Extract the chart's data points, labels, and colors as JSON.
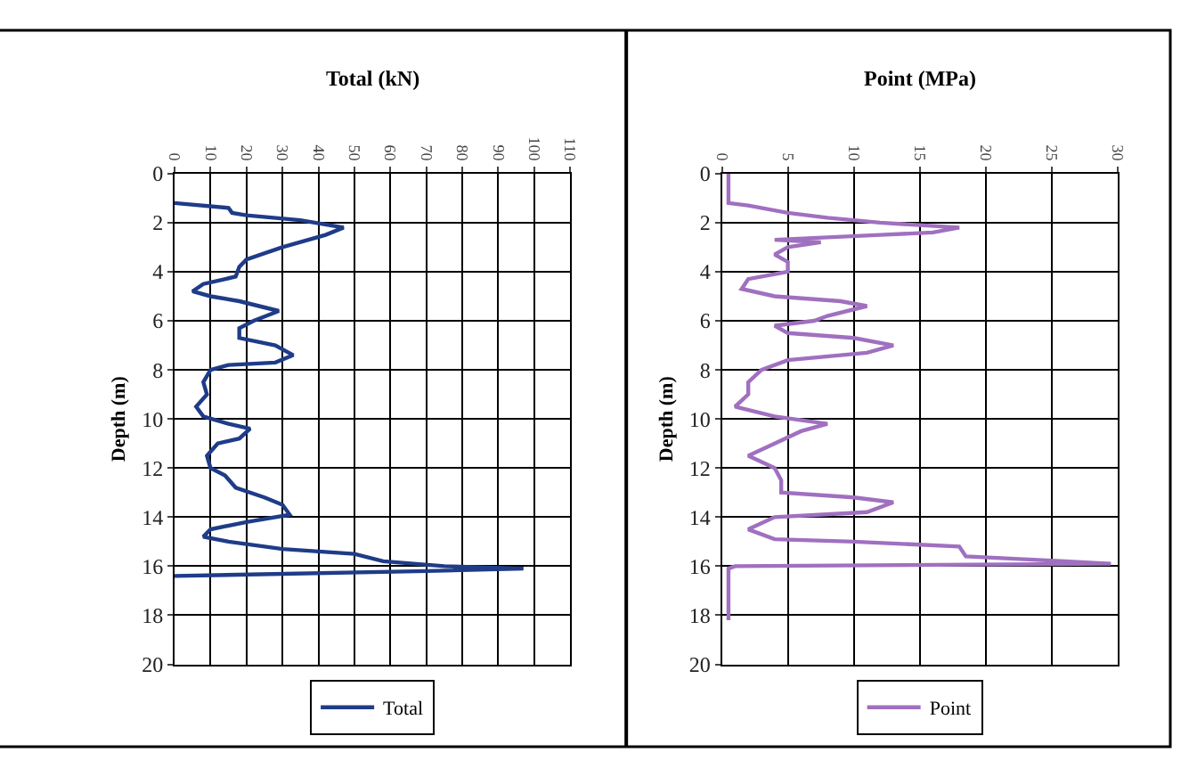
{
  "chart_data": [
    {
      "type": "line",
      "title": "Total (kN)",
      "ylabel": "Depth (m)",
      "xlim": [
        0,
        110
      ],
      "xticks": [
        0,
        10,
        20,
        30,
        40,
        50,
        60,
        70,
        80,
        90,
        100,
        110
      ],
      "ylim": [
        20,
        0
      ],
      "yticks": [
        0,
        2,
        4,
        6,
        8,
        10,
        12,
        14,
        16,
        18,
        20
      ],
      "grid": true,
      "legend": "bottom",
      "series": [
        {
          "name": "Total",
          "color": "#1f3c88",
          "x": [
            0,
            15,
            16,
            20,
            35,
            47,
            42,
            30,
            20,
            18,
            17,
            8,
            5,
            10,
            18,
            29,
            22,
            18,
            18,
            28,
            33,
            28,
            15,
            10,
            8,
            9,
            6,
            8,
            15,
            21,
            18,
            12,
            9,
            10,
            14,
            17,
            25,
            30,
            32,
            20,
            10,
            8,
            15,
            30,
            50,
            58,
            75,
            97,
            70,
            0
          ],
          "values": [
            1.2,
            1.4,
            1.6,
            1.7,
            1.9,
            2.2,
            2.5,
            3,
            3.5,
            3.8,
            4.2,
            4.5,
            4.8,
            5,
            5.2,
            5.6,
            6,
            6.3,
            6.7,
            7,
            7.4,
            7.7,
            7.8,
            8,
            8.5,
            9,
            9.5,
            9.9,
            10.2,
            10.4,
            10.8,
            11,
            11.5,
            12,
            12.3,
            12.8,
            13.2,
            13.5,
            13.9,
            14.2,
            14.5,
            14.8,
            15,
            15.3,
            15.5,
            15.8,
            16,
            16.1,
            16.2,
            16.4
          ]
        }
      ]
    },
    {
      "type": "line",
      "title": "Point (MPa)",
      "ylabel": "Depth (m)",
      "xlim": [
        0,
        30
      ],
      "xticks": [
        0,
        5,
        10,
        15,
        20,
        25,
        30
      ],
      "ylim": [
        20,
        0
      ],
      "yticks": [
        0,
        2,
        4,
        6,
        8,
        10,
        12,
        14,
        16,
        18,
        20
      ],
      "grid": true,
      "legend": "bottom",
      "series": [
        {
          "name": "Point",
          "color": "#a070c0",
          "x": [
            0.5,
            0.5,
            2,
            5,
            8,
            12,
            15,
            18,
            16,
            12,
            4,
            7.5,
            5,
            4,
            5,
            5,
            2,
            1.5,
            4,
            9,
            11,
            8,
            7,
            4,
            5,
            10,
            13,
            11,
            5,
            3,
            2,
            2,
            1,
            4,
            8,
            6,
            4,
            2,
            4,
            4.5,
            4.5,
            10,
            13,
            11,
            4,
            2,
            4,
            10,
            18,
            18.5,
            26,
            29.5,
            1,
            0.5,
            0.5
          ],
          "values": [
            0,
            1.2,
            1.3,
            1.6,
            1.8,
            2,
            2.1,
            2.2,
            2.4,
            2.5,
            2.7,
            2.8,
            3,
            3.3,
            3.6,
            4,
            4.3,
            4.7,
            5,
            5.2,
            5.4,
            5.8,
            6,
            6.2,
            6.5,
            6.7,
            7,
            7.3,
            7.6,
            8,
            8.5,
            9,
            9.5,
            9.9,
            10.2,
            10.5,
            11,
            11.5,
            12,
            12.5,
            13,
            13.2,
            13.4,
            13.8,
            14,
            14.5,
            14.9,
            15,
            15.2,
            15.6,
            15.8,
            15.9,
            16,
            16.1,
            18.2
          ]
        }
      ]
    }
  ]
}
